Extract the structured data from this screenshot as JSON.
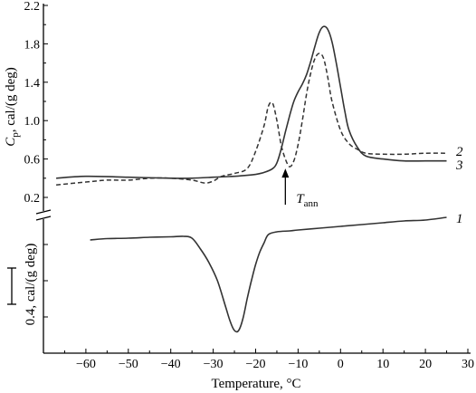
{
  "chart_data": {
    "type": "line",
    "xlabel": "Temperature, °C",
    "xlim": [
      -70,
      30
    ],
    "x_ticks": [
      "−60",
      "−50",
      "−40",
      "−30",
      "−20",
      "−10",
      "0",
      "10",
      "20",
      "30"
    ],
    "upper_panel": {
      "ylabel_symbol": "C",
      "ylabel_sub": "p",
      "ylabel_rest": ", cal/(g deg)",
      "ylim": [
        0.05,
        2.2
      ],
      "y_ticks": [
        "0.2",
        "0.6",
        "1.0",
        "1.4",
        "1.8",
        "2.2"
      ]
    },
    "lower_panel": {
      "scale_bar_label": "0.4, cal/(g deg)",
      "scale_bar_value": 0.4
    },
    "series": [
      {
        "name": "1",
        "panel": "lower",
        "x": [
          -59,
          -55,
          -50,
          -45,
          -40,
          -37,
          -35,
          -33,
          -31,
          -29,
          -27,
          -26,
          -25,
          -24,
          -23,
          -22,
          -21,
          -20,
          -19,
          -18,
          -17,
          -15,
          -12,
          -10,
          -5,
          0,
          5,
          10,
          15,
          20,
          25
        ],
        "y": [
          0.05,
          0.065,
          0.07,
          0.08,
          0.085,
          0.09,
          0.07,
          -0.05,
          -0.2,
          -0.4,
          -0.7,
          -0.85,
          -0.95,
          -0.95,
          -0.82,
          -0.6,
          -0.4,
          -0.22,
          -0.08,
          0.02,
          0.11,
          0.14,
          0.15,
          0.16,
          0.18,
          0.2,
          0.22,
          0.24,
          0.26,
          0.27,
          0.3
        ]
      },
      {
        "name": "2",
        "panel": "upper",
        "x": [
          -67,
          -60,
          -55,
          -50,
          -45,
          -40,
          -35,
          -32,
          -30,
          -28,
          -25,
          -22,
          -20,
          -18,
          -17,
          -16,
          -15,
          -14,
          -13,
          -12,
          -11,
          -10,
          -9,
          -8,
          -7,
          -6,
          -5,
          -4,
          -3,
          -2,
          0,
          2,
          4,
          6,
          10,
          15,
          20,
          25
        ],
        "y": [
          0.33,
          0.36,
          0.38,
          0.38,
          0.4,
          0.4,
          0.38,
          0.35,
          0.37,
          0.42,
          0.45,
          0.5,
          0.68,
          0.95,
          1.15,
          1.18,
          1.0,
          0.75,
          0.6,
          0.52,
          0.58,
          0.75,
          1.0,
          1.28,
          1.5,
          1.65,
          1.7,
          1.65,
          1.45,
          1.2,
          0.9,
          0.76,
          0.7,
          0.66,
          0.65,
          0.65,
          0.66,
          0.66
        ]
      },
      {
        "name": "3",
        "panel": "upper",
        "x": [
          -67,
          -60,
          -50,
          -40,
          -35,
          -30,
          -25,
          -22,
          -20,
          -18,
          -16,
          -15,
          -14,
          -13,
          -12,
          -11,
          -10,
          -9,
          -8,
          -7,
          -6,
          -5,
          -4,
          -3,
          -2,
          -1,
          0,
          1,
          2,
          4,
          6,
          10,
          15,
          20,
          25
        ],
        "y": [
          0.4,
          0.42,
          0.41,
          0.4,
          0.4,
          0.41,
          0.42,
          0.43,
          0.44,
          0.46,
          0.5,
          0.56,
          0.7,
          0.88,
          1.05,
          1.2,
          1.3,
          1.38,
          1.48,
          1.62,
          1.78,
          1.92,
          1.98,
          1.95,
          1.82,
          1.6,
          1.35,
          1.1,
          0.9,
          0.72,
          0.63,
          0.6,
          0.58,
          0.58,
          0.58
        ]
      }
    ],
    "annotation": {
      "symbol": "T",
      "subscript": "ann",
      "x": -13,
      "y": 0.52
    }
  }
}
